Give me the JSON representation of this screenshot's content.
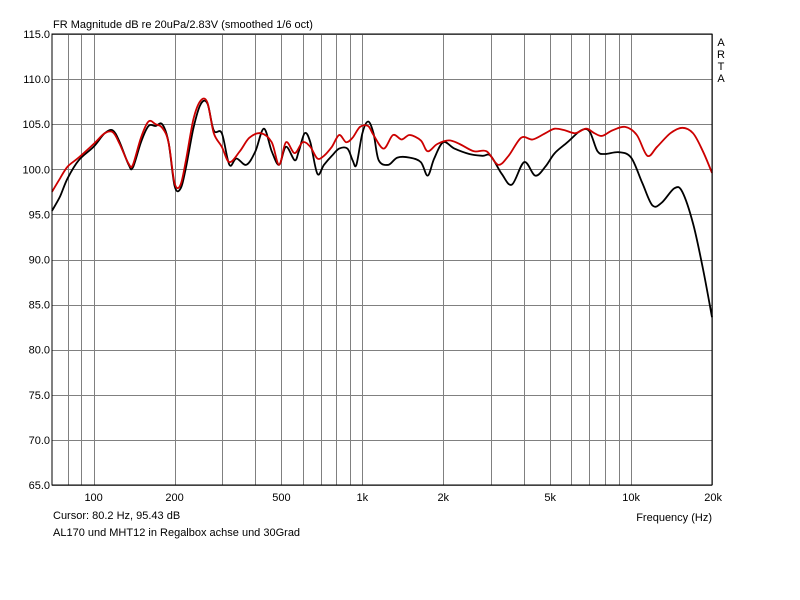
{
  "chart_data": {
    "type": "line",
    "title": "FR Magnitude dB re 20uPa/2.83V (smoothed 1/6 oct)",
    "xlabel": "Frequency (Hz)",
    "ylabel": "",
    "x_scale": "log",
    "xlim": [
      70,
      20000
    ],
    "ylim": [
      65,
      115
    ],
    "grid": true,
    "x_ticks": [
      {
        "value": 100,
        "label": "100"
      },
      {
        "value": 200,
        "label": "200"
      },
      {
        "value": 500,
        "label": "500"
      },
      {
        "value": 1000,
        "label": "1k"
      },
      {
        "value": 2000,
        "label": "2k"
      },
      {
        "value": 5000,
        "label": "5k"
      },
      {
        "value": 10000,
        "label": "10k"
      },
      {
        "value": 20000,
        "label": "20k"
      }
    ],
    "x_minor_grid": [
      80,
      90,
      300,
      400,
      600,
      700,
      800,
      900,
      3000,
      4000,
      6000,
      7000,
      8000,
      9000
    ],
    "y_ticks": [
      {
        "value": 115,
        "label": "115.0"
      },
      {
        "value": 110,
        "label": "110.0"
      },
      {
        "value": 105,
        "label": "105.0"
      },
      {
        "value": 100,
        "label": "100.0"
      },
      {
        "value": 95,
        "label": "95.0"
      },
      {
        "value": 90,
        "label": "90.0"
      },
      {
        "value": 85,
        "label": "85.0"
      },
      {
        "value": 80,
        "label": "80.0"
      },
      {
        "value": 75,
        "label": "75.0"
      },
      {
        "value": 70,
        "label": "70.0"
      },
      {
        "value": 65,
        "label": "65.0"
      }
    ],
    "brand_letters": [
      "A",
      "R",
      "T",
      "A"
    ],
    "series": [
      {
        "color": "#000000",
        "points": [
          [
            70,
            95.4
          ],
          [
            75,
            97
          ],
          [
            80,
            99
          ],
          [
            88,
            101
          ],
          [
            100,
            102.5
          ],
          [
            110,
            104
          ],
          [
            118,
            104.3
          ],
          [
            125,
            103
          ],
          [
            135,
            100.5
          ],
          [
            140,
            100.2
          ],
          [
            150,
            103
          ],
          [
            160,
            104.8
          ],
          [
            170,
            104.8
          ],
          [
            180,
            105
          ],
          [
            190,
            103
          ],
          [
            200,
            98.2
          ],
          [
            210,
            97.8
          ],
          [
            220,
            100
          ],
          [
            235,
            104.5
          ],
          [
            250,
            107.2
          ],
          [
            265,
            107.3
          ],
          [
            280,
            104.3
          ],
          [
            300,
            104
          ],
          [
            320,
            100.5
          ],
          [
            340,
            101.2
          ],
          [
            370,
            100.5
          ],
          [
            400,
            102
          ],
          [
            430,
            104.5
          ],
          [
            460,
            102
          ],
          [
            490,
            100.5
          ],
          [
            520,
            102.5
          ],
          [
            560,
            101
          ],
          [
            580,
            102
          ],
          [
            610,
            104
          ],
          [
            640,
            103
          ],
          [
            680,
            99.5
          ],
          [
            720,
            100.5
          ],
          [
            770,
            101.5
          ],
          [
            820,
            102.3
          ],
          [
            880,
            102.3
          ],
          [
            920,
            101
          ],
          [
            950,
            100.5
          ],
          [
            1000,
            104
          ],
          [
            1050,
            105.3
          ],
          [
            1100,
            104
          ],
          [
            1150,
            101
          ],
          [
            1250,
            100.5
          ],
          [
            1350,
            101.3
          ],
          [
            1500,
            101.3
          ],
          [
            1650,
            100.8
          ],
          [
            1750,
            99.3
          ],
          [
            1850,
            101.2
          ],
          [
            2000,
            103
          ],
          [
            2200,
            102.3
          ],
          [
            2500,
            101.7
          ],
          [
            2800,
            101.5
          ],
          [
            3000,
            101.5
          ],
          [
            3300,
            99.5
          ],
          [
            3600,
            98.3
          ],
          [
            4000,
            100.8
          ],
          [
            4400,
            99.3
          ],
          [
            4800,
            100.3
          ],
          [
            5200,
            101.8
          ],
          [
            5800,
            103
          ],
          [
            6500,
            104.3
          ],
          [
            7000,
            104.2
          ],
          [
            7500,
            102
          ],
          [
            8000,
            101.7
          ],
          [
            9000,
            101.9
          ],
          [
            10000,
            101.3
          ],
          [
            11000,
            98.5
          ],
          [
            12000,
            96
          ],
          [
            13000,
            96.3
          ],
          [
            14500,
            97.9
          ],
          [
            15500,
            97.5
          ],
          [
            17000,
            94
          ],
          [
            18500,
            89
          ],
          [
            20000,
            83.6
          ]
        ]
      },
      {
        "color": "#cc0000",
        "points": [
          [
            70,
            97.5
          ],
          [
            75,
            99
          ],
          [
            80,
            100.3
          ],
          [
            88,
            101.3
          ],
          [
            100,
            102.8
          ],
          [
            110,
            104
          ],
          [
            118,
            104.1
          ],
          [
            125,
            102.8
          ],
          [
            135,
            100.6
          ],
          [
            140,
            100.5
          ],
          [
            150,
            103.5
          ],
          [
            160,
            105.3
          ],
          [
            170,
            105
          ],
          [
            180,
            104.6
          ],
          [
            190,
            103
          ],
          [
            200,
            98.5
          ],
          [
            210,
            98.2
          ],
          [
            220,
            100.8
          ],
          [
            235,
            105.5
          ],
          [
            250,
            107.6
          ],
          [
            265,
            107.4
          ],
          [
            280,
            104
          ],
          [
            300,
            102.5
          ],
          [
            320,
            100.8
          ],
          [
            350,
            102
          ],
          [
            380,
            103.5
          ],
          [
            420,
            104
          ],
          [
            460,
            103
          ],
          [
            490,
            100.5
          ],
          [
            520,
            103
          ],
          [
            560,
            101.8
          ],
          [
            600,
            103
          ],
          [
            640,
            102.5
          ],
          [
            680,
            101.2
          ],
          [
            720,
            101.5
          ],
          [
            770,
            102.5
          ],
          [
            820,
            103.8
          ],
          [
            870,
            103
          ],
          [
            920,
            103.5
          ],
          [
            980,
            104.7
          ],
          [
            1050,
            104.8
          ],
          [
            1100,
            103.8
          ],
          [
            1200,
            102.3
          ],
          [
            1300,
            103.8
          ],
          [
            1400,
            103.3
          ],
          [
            1500,
            103.8
          ],
          [
            1650,
            103.2
          ],
          [
            1750,
            102
          ],
          [
            1900,
            102.8
          ],
          [
            2100,
            103.2
          ],
          [
            2300,
            102.8
          ],
          [
            2600,
            102
          ],
          [
            2900,
            102
          ],
          [
            3200,
            100.5
          ],
          [
            3500,
            101.5
          ],
          [
            3900,
            103.5
          ],
          [
            4300,
            103.3
          ],
          [
            4800,
            104
          ],
          [
            5200,
            104.5
          ],
          [
            5700,
            104.3
          ],
          [
            6200,
            104
          ],
          [
            6800,
            104.5
          ],
          [
            7300,
            104
          ],
          [
            7800,
            103.7
          ],
          [
            8500,
            104.3
          ],
          [
            9500,
            104.7
          ],
          [
            10500,
            103.8
          ],
          [
            11500,
            101.5
          ],
          [
            12500,
            102.5
          ],
          [
            14000,
            104
          ],
          [
            15500,
            104.6
          ],
          [
            17000,
            104
          ],
          [
            18500,
            102
          ],
          [
            20000,
            99.6
          ]
        ]
      }
    ]
  },
  "footer": {
    "cursor_readout": "Cursor: 80.2 Hz, 95.43 dB",
    "caption": "AL170 und MHT12 in Regalbox achse und 30Grad"
  }
}
